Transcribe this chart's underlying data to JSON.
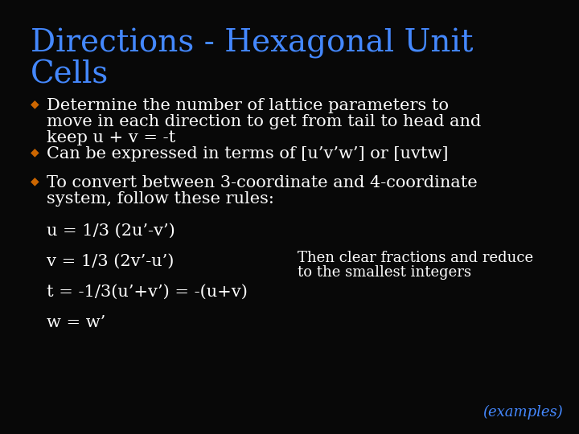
{
  "background_color": "#080808",
  "title_line1": "Directions - Hexagonal Unit",
  "title_line2": "Cells",
  "title_color": "#4488ff",
  "title_fontsize": 28,
  "bullet_color": "#cc6600",
  "body_color": "#ffffff",
  "body_fontsize": 15,
  "bullet1_line1": "Determine the number of lattice parameters to",
  "bullet1_line2": "move in each direction to get from tail to head and",
  "bullet1_line3": "keep u + v = -t",
  "bullet2": "Can be expressed in terms of [u’v’w’] or [uvtw]",
  "bullet3_line1": "To convert between 3-coordinate and 4-coordinate",
  "bullet3_line2": "system, follow these rules:",
  "equation1": "u = 1/3 (2u’-v’)",
  "equation2": "v = 1/3 (2v’-u’)",
  "equation3": "t = -1/3(u’+v’) = -(u+v)",
  "equation4": "w = w’",
  "side_note_line1": "Then clear fractions and reduce",
  "side_note_line2": "to the smallest integers",
  "side_note_color": "#ffffff",
  "side_note_fontsize": 13,
  "examples_text": "(examples)",
  "examples_color": "#4488ff",
  "examples_fontsize": 13,
  "bullet_symbol": "◆"
}
